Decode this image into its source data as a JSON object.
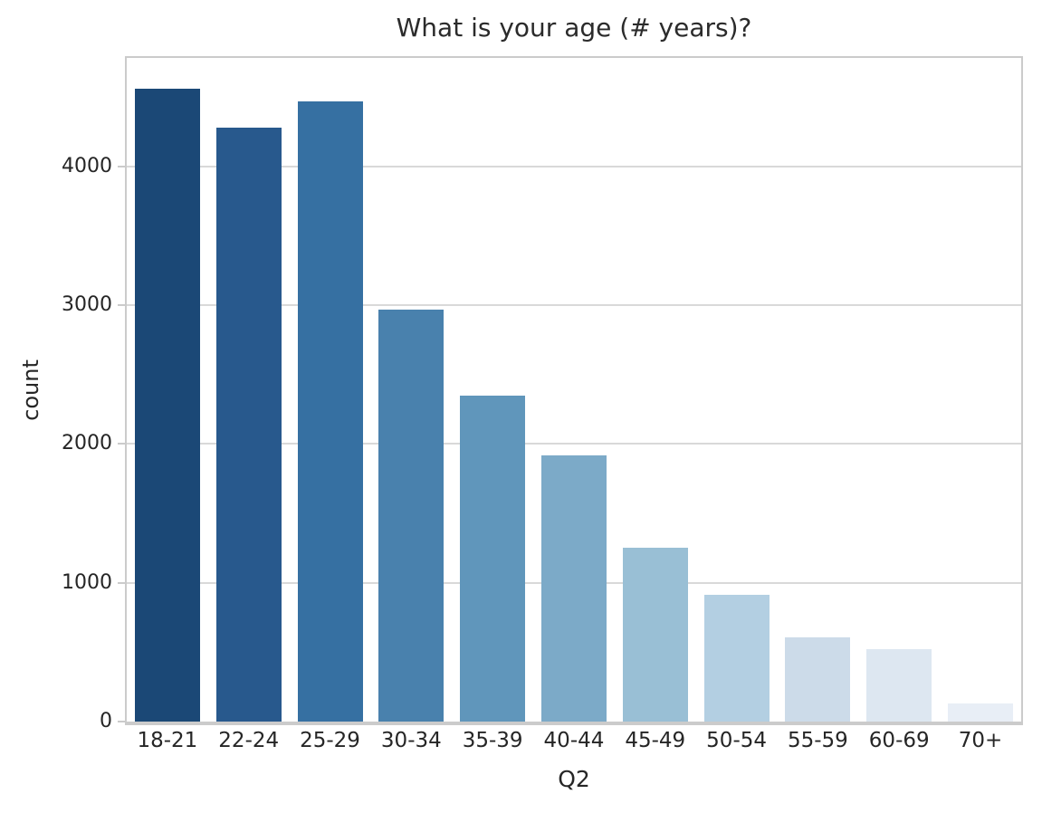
{
  "figure": {
    "title": "What is your age (# years)?",
    "x_axis_label": "Q2",
    "y_axis_label": "count"
  },
  "chart_data": {
    "type": "bar",
    "title": "What is your age (# years)?",
    "xlabel": "Q2",
    "ylabel": "count",
    "categories": [
      "18-21",
      "22-24",
      "25-29",
      "30-34",
      "35-39",
      "40-44",
      "45-49",
      "50-54",
      "55-59",
      "60-69",
      "70+"
    ],
    "values": [
      4560,
      4280,
      4470,
      2970,
      2350,
      1920,
      1250,
      915,
      605,
      525,
      130
    ],
    "bar_colors": [
      "#1b4876",
      "#28598d",
      "#3670a2",
      "#4981ad",
      "#6096bb",
      "#7caac8",
      "#99bfd5",
      "#b3cfe2",
      "#ccdbe9",
      "#dde7f1",
      "#e8eef6"
    ],
    "yticks": [
      0,
      1000,
      2000,
      3000,
      4000
    ],
    "ytick_labels": [
      "0",
      "1000",
      "2000",
      "3000",
      "4000"
    ],
    "ylim": [
      0,
      4780
    ],
    "grid": "horizontal",
    "legend": "none",
    "colors": {
      "background": "#ffffff",
      "text": "#262626",
      "grid_line": "#d9d9d9",
      "spine": "#cbcbcb"
    }
  }
}
